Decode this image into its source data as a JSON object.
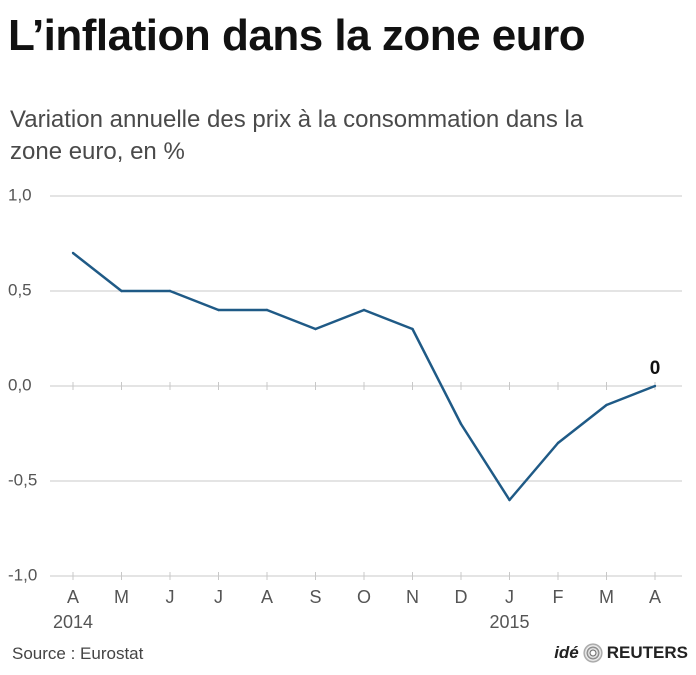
{
  "title": "L’inflation dans la zone euro",
  "subtitle": "Variation annuelle des prix à la consommation dans la zone euro, en %",
  "source": "Source : Eurostat",
  "brand": {
    "ide": "idé",
    "reuters": "REUTERS"
  },
  "colors": {
    "line": "#1f5a86",
    "grid": "#c8c8c8",
    "axis_text": "#555555"
  },
  "chart_data": {
    "type": "line",
    "categories": [
      "A",
      "M",
      "J",
      "J",
      "A",
      "S",
      "O",
      "N",
      "D",
      "J",
      "F",
      "M",
      "A"
    ],
    "year_labels": [
      {
        "index": 0,
        "label": "2014"
      },
      {
        "index": 9,
        "label": "2015"
      }
    ],
    "values": [
      0.7,
      0.5,
      0.5,
      0.4,
      0.4,
      0.3,
      0.4,
      0.3,
      -0.2,
      -0.6,
      -0.3,
      -0.1,
      0.0
    ],
    "yticks": [
      "1,0",
      "0,5",
      "0,0",
      "-0,5",
      "-1,0"
    ],
    "ytick_values": [
      1.0,
      0.5,
      0.0,
      -0.5,
      -1.0
    ],
    "ylim": [
      -1.0,
      1.0
    ],
    "grid": true,
    "last_label": "0",
    "title": "L’inflation dans la zone euro",
    "xlabel": "",
    "ylabel": ""
  }
}
